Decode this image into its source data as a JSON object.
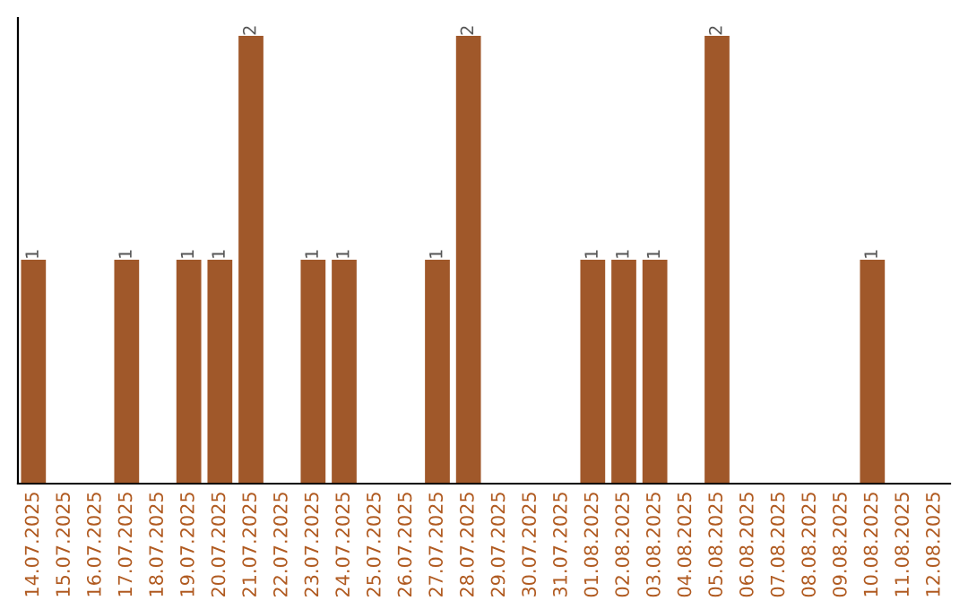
{
  "chart_data": {
    "type": "bar",
    "categories": [
      "14.07.2025",
      "15.07.2025",
      "16.07.2025",
      "17.07.2025",
      "18.07.2025",
      "19.07.2025",
      "20.07.2025",
      "21.07.2025",
      "22.07.2025",
      "23.07.2025",
      "24.07.2025",
      "25.07.2025",
      "26.07.2025",
      "27.07.2025",
      "28.07.2025",
      "29.07.2025",
      "30.07.2025",
      "31.07.2025",
      "01.08.2025",
      "02.08.2025",
      "03.08.2025",
      "04.08.2025",
      "05.08.2025",
      "06.08.2025",
      "07.08.2025",
      "08.08.2025",
      "09.08.2025",
      "10.08.2025",
      "11.08.2025",
      "12.08.2025"
    ],
    "values": [
      1,
      0,
      0,
      1,
      0,
      1,
      1,
      2,
      0,
      1,
      1,
      0,
      0,
      1,
      2,
      0,
      0,
      0,
      1,
      1,
      1,
      0,
      2,
      0,
      0,
      0,
      0,
      1,
      0,
      0
    ],
    "value_labels": [
      "1",
      null,
      null,
      "1",
      null,
      "1",
      "1",
      "2",
      null,
      "1",
      "1",
      null,
      null,
      "1",
      "2",
      null,
      null,
      null,
      "1",
      "1",
      "1",
      null,
      "2",
      null,
      null,
      null,
      null,
      "1",
      null,
      null
    ],
    "color": "#a0582a",
    "tick_labels": "x",
    "grid": false,
    "legend": false
  }
}
